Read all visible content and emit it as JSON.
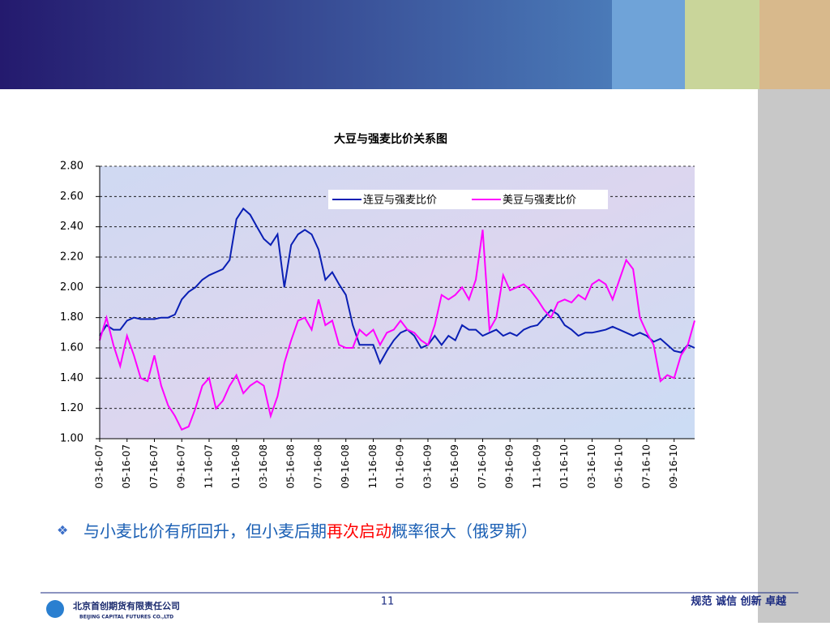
{
  "chart_data": {
    "type": "line",
    "title": "大豆与强麦比价关系图",
    "categories": [
      "03-16-07",
      null,
      null,
      null,
      "05-16-07",
      null,
      null,
      null,
      "07-16-07",
      null,
      null,
      null,
      "09-16-07",
      null,
      null,
      null,
      "11-16-07",
      null,
      null,
      null,
      "01-16-08",
      null,
      null,
      null,
      "03-16-08",
      null,
      null,
      null,
      "05-16-08",
      null,
      null,
      null,
      "07-16-08",
      null,
      null,
      null,
      "09-16-08",
      null,
      null,
      null,
      "11-16-08",
      null,
      null,
      null,
      "01-16-09",
      null,
      null,
      null,
      "03-16-09",
      null,
      null,
      null,
      "05-16-09",
      null,
      null,
      null,
      "07-16-09",
      null,
      null,
      null,
      "09-16-09",
      null,
      null,
      null,
      "11-16-09",
      null,
      null,
      null,
      "01-16-10",
      null,
      null,
      null,
      "03-16-10",
      null,
      null,
      null,
      "05-16-10",
      null,
      null,
      null,
      "07-16-10",
      null,
      null,
      null,
      "09-16-10",
      null,
      null,
      null
    ],
    "series": [
      {
        "name": "连豆与强麦比价",
        "color": "#0a1fb4",
        "values": [
          1.68,
          1.75,
          1.72,
          1.72,
          1.78,
          1.8,
          1.79,
          1.79,
          1.79,
          1.8,
          1.8,
          1.82,
          1.92,
          1.97,
          2.0,
          2.05,
          2.08,
          2.1,
          2.12,
          2.18,
          2.45,
          2.52,
          2.48,
          2.4,
          2.32,
          2.28,
          2.35,
          2.0,
          2.28,
          2.35,
          2.38,
          2.35,
          2.25,
          2.05,
          2.1,
          2.02,
          1.95,
          1.75,
          1.62,
          1.62,
          1.62,
          1.5,
          1.58,
          1.65,
          1.7,
          1.72,
          1.68,
          1.6,
          1.62,
          1.68,
          1.62,
          1.68,
          1.65,
          1.75,
          1.72,
          1.72,
          1.68,
          1.7,
          1.72,
          1.68,
          1.7,
          1.68,
          1.72,
          1.74,
          1.75,
          1.8,
          1.85,
          1.82,
          1.75,
          1.72,
          1.68,
          1.7,
          1.7,
          1.71,
          1.72,
          1.74,
          1.72,
          1.7,
          1.68,
          1.7,
          1.68,
          1.64,
          1.66,
          1.62,
          1.58,
          1.57,
          1.62,
          1.6
        ]
      },
      {
        "name": "美豆与强麦比价",
        "color": "#ff00ff",
        "values": [
          1.65,
          1.8,
          1.62,
          1.48,
          1.68,
          1.55,
          1.4,
          1.38,
          1.55,
          1.35,
          1.22,
          1.15,
          1.06,
          1.08,
          1.2,
          1.35,
          1.4,
          1.2,
          1.25,
          1.35,
          1.42,
          1.3,
          1.35,
          1.38,
          1.35,
          1.15,
          1.28,
          1.5,
          1.65,
          1.78,
          1.8,
          1.72,
          1.92,
          1.75,
          1.78,
          1.62,
          1.6,
          1.6,
          1.72,
          1.68,
          1.72,
          1.62,
          1.7,
          1.72,
          1.78,
          1.72,
          1.7,
          1.65,
          1.62,
          1.75,
          1.95,
          1.92,
          1.95,
          2.0,
          1.92,
          2.05,
          2.38,
          1.72,
          1.8,
          2.08,
          1.98,
          2.0,
          2.02,
          1.98,
          1.92,
          1.85,
          1.8,
          1.9,
          1.92,
          1.9,
          1.95,
          1.92,
          2.02,
          2.05,
          2.02,
          1.92,
          2.05,
          2.18,
          2.12,
          1.8,
          1.7,
          1.62,
          1.38,
          1.42,
          1.4,
          1.55,
          1.62,
          1.78
        ]
      }
    ],
    "ylim": [
      1.0,
      2.8
    ],
    "yticks": [
      {
        "value": 1.0,
        "label": "1.00"
      },
      {
        "value": 1.2,
        "label": "1.20"
      },
      {
        "value": 1.4,
        "label": "1.40"
      },
      {
        "value": 1.6,
        "label": "1.60"
      },
      {
        "value": 1.8,
        "label": "1.80"
      },
      {
        "value": 2.0,
        "label": "2.00"
      },
      {
        "value": 2.2,
        "label": "2.20"
      },
      {
        "value": 2.4,
        "label": "2.40"
      },
      {
        "value": 2.6,
        "label": "2.60"
      },
      {
        "value": 2.8,
        "label": "2.80"
      }
    ],
    "grid": true,
    "legend": "top"
  },
  "bullet": {
    "parts": [
      {
        "text": "与小麦比价有所回升，但小麦后期",
        "color": "#1a5fb4"
      },
      {
        "text": "再次启动",
        "color": "#ff0000"
      },
      {
        "text": "概率很大（俄罗斯）",
        "color": "#1a5fb4"
      }
    ]
  },
  "footer": {
    "page": "11",
    "slogan": "规范 诚信 创新 卓越",
    "company": "北京首创期货有限责任公司",
    "company_en": "BEIJING CAPITAL FUTURES CO.,LTD"
  }
}
